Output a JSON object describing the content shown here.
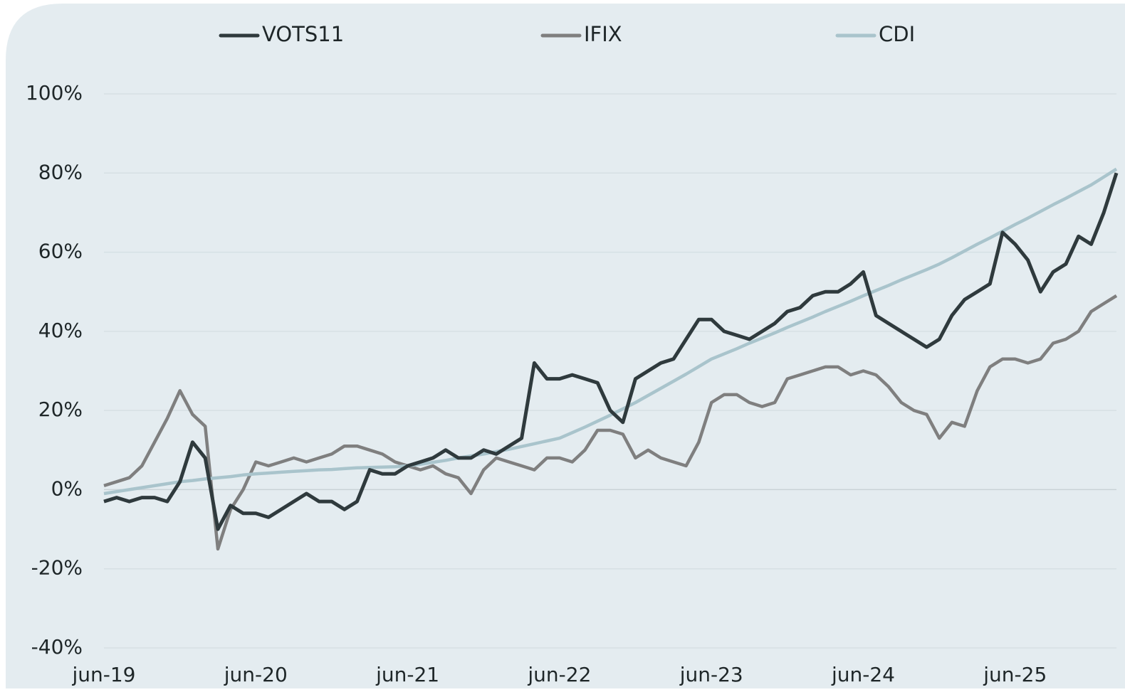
{
  "chart_data": {
    "type": "line",
    "categories": [
      "jun-19",
      null,
      null,
      null,
      null,
      null,
      null,
      null,
      null,
      null,
      null,
      null,
      "jun-20",
      null,
      null,
      null,
      null,
      null,
      null,
      null,
      null,
      null,
      null,
      null,
      "jun-21",
      null,
      null,
      null,
      null,
      null,
      null,
      null,
      null,
      null,
      null,
      null,
      "jun-22",
      null,
      null,
      null,
      null,
      null,
      null,
      null,
      null,
      null,
      null,
      null,
      "jun-23",
      null,
      null,
      null,
      null,
      null,
      null,
      null,
      null,
      null,
      null,
      null,
      "jun-24",
      null,
      null,
      null,
      null,
      null,
      null,
      null,
      null,
      null,
      null,
      null,
      "jun-25",
      null,
      null,
      null,
      null,
      null,
      null,
      null,
      null
    ],
    "series": [
      {
        "name": "VOTS11",
        "color": "#2f3a3d",
        "values": [
          -3,
          -2,
          -3,
          -2,
          -2,
          -3,
          2,
          12,
          8,
          -10,
          -4,
          -6,
          -6,
          -7,
          -5,
          -3,
          -1,
          -3,
          -3,
          -5,
          -3,
          5,
          4,
          4,
          6,
          7,
          8,
          10,
          8,
          8,
          10,
          9,
          11,
          13,
          32,
          28,
          28,
          29,
          28,
          27,
          20,
          17,
          28,
          30,
          32,
          33,
          38,
          43,
          43,
          40,
          39,
          38,
          40,
          42,
          45,
          46,
          49,
          50,
          50,
          52,
          55,
          44,
          42,
          40,
          38,
          36,
          38,
          44,
          48,
          50,
          52,
          65,
          62,
          58,
          50,
          55,
          57,
          64,
          62,
          70,
          80
        ]
      },
      {
        "name": "IFIX",
        "color": "#7f7f7f",
        "values": [
          1,
          2,
          3,
          6,
          12,
          18,
          25,
          19,
          16,
          -15,
          -5,
          0,
          7,
          6,
          7,
          8,
          7,
          8,
          9,
          11,
          11,
          10,
          9,
          7,
          6,
          5,
          6,
          4,
          3,
          -1,
          5,
          8,
          7,
          6,
          5,
          8,
          8,
          7,
          10,
          15,
          15,
          14,
          8,
          10,
          8,
          7,
          6,
          12,
          22,
          24,
          24,
          22,
          21,
          22,
          28,
          29,
          30,
          31,
          31,
          29,
          30,
          29,
          26,
          22,
          20,
          19,
          13,
          17,
          16,
          25,
          31,
          33,
          33,
          32,
          33,
          37,
          38,
          40,
          45,
          47,
          49
        ]
      },
      {
        "name": "CDI",
        "color": "#a9c4cc",
        "values": [
          -1,
          -0.5,
          0,
          0.5,
          1,
          1.5,
          2,
          2.3,
          2.7,
          3,
          3.3,
          3.7,
          4,
          4.2,
          4.4,
          4.6,
          4.8,
          5,
          5.1,
          5.3,
          5.5,
          5.6,
          5.7,
          5.8,
          6,
          6.4,
          6.9,
          7.4,
          8,
          8.5,
          9,
          9.6,
          10.2,
          10.9,
          11.6,
          12.3,
          13,
          14.4,
          15.8,
          17.3,
          18.8,
          20.4,
          22,
          23.8,
          25.6,
          27.4,
          29.2,
          31.1,
          33,
          34.3,
          35.6,
          37,
          38.3,
          39.6,
          41,
          42.3,
          43.6,
          45,
          46.3,
          47.6,
          49,
          50.3,
          51.6,
          53,
          54.3,
          55.6,
          57,
          58.6,
          60.3,
          62,
          63.6,
          65.3,
          67,
          68.6,
          70.3,
          72,
          73.6,
          75.3,
          77,
          79,
          81
        ]
      }
    ],
    "ylim": [
      -40,
      100
    ],
    "yticks": [
      {
        "value": -40,
        "label": "-40%"
      },
      {
        "value": -20,
        "label": "-20%"
      },
      {
        "value": 0,
        "label": "0%"
      },
      {
        "value": 20,
        "label": "20%"
      },
      {
        "value": 40,
        "label": "40%"
      },
      {
        "value": 60,
        "label": "60%"
      },
      {
        "value": 80,
        "label": "80%"
      },
      {
        "value": 100,
        "label": "100%"
      }
    ],
    "grid": true,
    "legend": "top"
  }
}
